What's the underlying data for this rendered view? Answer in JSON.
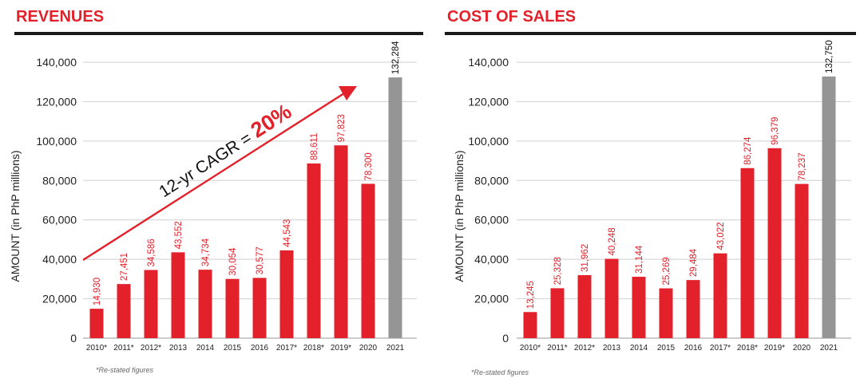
{
  "charts_meta": {
    "bar_color": "#e3212b",
    "highlight_color": "#959595",
    "title_color": "#e3212b",
    "rule_color": "#1a1a1a"
  },
  "chart_data": [
    {
      "type": "bar",
      "title": "REVENUES",
      "ylabel": "AMOUNT (in PhP millions)",
      "categories": [
        "2010*",
        "2011*",
        "2012*",
        "2013",
        "2014",
        "2015",
        "2016",
        "2017*",
        "2018*",
        "2019*",
        "2020",
        "2021"
      ],
      "values": [
        14930,
        27451,
        34586,
        43552,
        34734,
        30054,
        30577,
        44543,
        88611,
        97823,
        78300,
        132284
      ],
      "data_labels": [
        "14,930",
        "27,451",
        "34,586",
        "43,552",
        "34,734",
        "30,054",
        "30,577",
        "44,543",
        "88,611",
        "97,823",
        "78,300",
        "132,284"
      ],
      "ylim": [
        0,
        140000
      ],
      "yticks": [
        0,
        20000,
        40000,
        60000,
        80000,
        100000,
        120000,
        140000
      ],
      "ytick_labels": [
        "0",
        "20,000",
        "40,000",
        "60,000",
        "80,000",
        "100,000",
        "120,000",
        "140,000"
      ],
      "grid": true,
      "highlight_last": true,
      "annotation": {
        "text": "12-yr CAGR = ",
        "value": "20%"
      },
      "footnote": "*Re-stated figures"
    },
    {
      "type": "bar",
      "title": "COST OF SALES",
      "ylabel": "AMOUNT (in PhP millions)",
      "categories": [
        "2010*",
        "2011*",
        "2012*",
        "2013",
        "2014",
        "2015",
        "2016",
        "2017*",
        "2018*",
        "2019*",
        "2020",
        "2021"
      ],
      "values": [
        13245,
        25328,
        31962,
        40248,
        31144,
        25269,
        29484,
        43022,
        86274,
        96379,
        78237,
        132750
      ],
      "data_labels": [
        "13,245",
        "25,328",
        "31,962",
        "40,248",
        "31,144",
        "25,269",
        "29,484",
        "43,022",
        "86,274",
        "96,379",
        "78,237",
        "132,750"
      ],
      "ylim": [
        0,
        140000
      ],
      "yticks": [
        0,
        20000,
        40000,
        60000,
        80000,
        100000,
        120000,
        140000
      ],
      "ytick_labels": [
        "0",
        "20,000",
        "40,000",
        "60,000",
        "80,000",
        "100,000",
        "120,000",
        "140,000"
      ],
      "grid": true,
      "highlight_last": true,
      "footnote": "*Re-stated figures"
    }
  ]
}
